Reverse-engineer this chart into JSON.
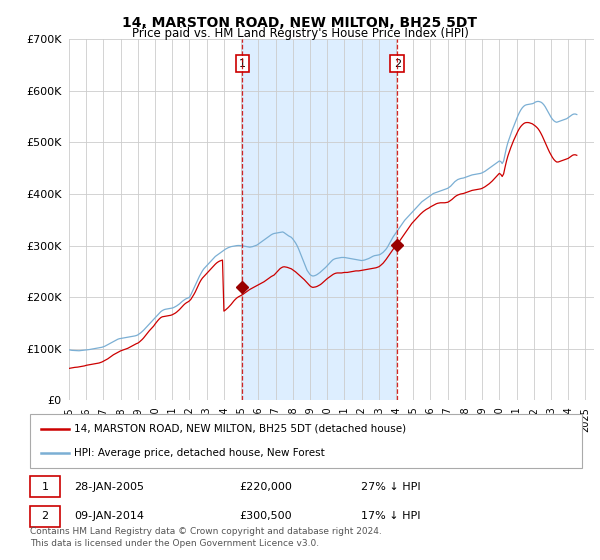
{
  "title": "14, MARSTON ROAD, NEW MILTON, BH25 5DT",
  "subtitle": "Price paid vs. HM Land Registry's House Price Index (HPI)",
  "ylim": [
    0,
    700000
  ],
  "xlim_start": 1995.0,
  "xlim_end": 2025.5,
  "sale1_date": 2005.07,
  "sale1_price": 220000,
  "sale2_date": 2014.07,
  "sale2_price": 300500,
  "legend_line1": "14, MARSTON ROAD, NEW MILTON, BH25 5DT (detached house)",
  "legend_line2": "HPI: Average price, detached house, New Forest",
  "footer": "Contains HM Land Registry data © Crown copyright and database right 2024.\nThis data is licensed under the Open Government Licence v3.0.",
  "line_color_red": "#cc0000",
  "line_color_blue": "#7bafd4",
  "sale_marker_color": "#990000",
  "vline_color": "#cc0000",
  "shade_color": "#ddeeff",
  "background_plot": "#ffffff",
  "grid_color": "#cccccc",
  "hpi_data_x": [
    1995.0,
    1995.083,
    1995.167,
    1995.25,
    1995.333,
    1995.417,
    1995.5,
    1995.583,
    1995.667,
    1995.75,
    1995.833,
    1995.917,
    1996.0,
    1996.083,
    1996.167,
    1996.25,
    1996.333,
    1996.417,
    1996.5,
    1996.583,
    1996.667,
    1996.75,
    1996.833,
    1996.917,
    1997.0,
    1997.083,
    1997.167,
    1997.25,
    1997.333,
    1997.417,
    1997.5,
    1997.583,
    1997.667,
    1997.75,
    1997.833,
    1997.917,
    1998.0,
    1998.083,
    1998.167,
    1998.25,
    1998.333,
    1998.417,
    1998.5,
    1998.583,
    1998.667,
    1998.75,
    1998.833,
    1998.917,
    1999.0,
    1999.083,
    1999.167,
    1999.25,
    1999.333,
    1999.417,
    1999.5,
    1999.583,
    1999.667,
    1999.75,
    1999.833,
    1999.917,
    2000.0,
    2000.083,
    2000.167,
    2000.25,
    2000.333,
    2000.417,
    2000.5,
    2000.583,
    2000.667,
    2000.75,
    2000.833,
    2000.917,
    2001.0,
    2001.083,
    2001.167,
    2001.25,
    2001.333,
    2001.417,
    2001.5,
    2001.583,
    2001.667,
    2001.75,
    2001.833,
    2001.917,
    2002.0,
    2002.083,
    2002.167,
    2002.25,
    2002.333,
    2002.417,
    2002.5,
    2002.583,
    2002.667,
    2002.75,
    2002.833,
    2002.917,
    2003.0,
    2003.083,
    2003.167,
    2003.25,
    2003.333,
    2003.417,
    2003.5,
    2003.583,
    2003.667,
    2003.75,
    2003.833,
    2003.917,
    2004.0,
    2004.083,
    2004.167,
    2004.25,
    2004.333,
    2004.417,
    2004.5,
    2004.583,
    2004.667,
    2004.75,
    2004.833,
    2004.917,
    2005.0,
    2005.083,
    2005.167,
    2005.25,
    2005.333,
    2005.417,
    2005.5,
    2005.583,
    2005.667,
    2005.75,
    2005.833,
    2005.917,
    2006.0,
    2006.083,
    2006.167,
    2006.25,
    2006.333,
    2006.417,
    2006.5,
    2006.583,
    2006.667,
    2006.75,
    2006.833,
    2006.917,
    2007.0,
    2007.083,
    2007.167,
    2007.25,
    2007.333,
    2007.417,
    2007.5,
    2007.583,
    2007.667,
    2007.75,
    2007.833,
    2007.917,
    2008.0,
    2008.083,
    2008.167,
    2008.25,
    2008.333,
    2008.417,
    2008.5,
    2008.583,
    2008.667,
    2008.75,
    2008.833,
    2008.917,
    2009.0,
    2009.083,
    2009.167,
    2009.25,
    2009.333,
    2009.417,
    2009.5,
    2009.583,
    2009.667,
    2009.75,
    2009.833,
    2009.917,
    2010.0,
    2010.083,
    2010.167,
    2010.25,
    2010.333,
    2010.417,
    2010.5,
    2010.583,
    2010.667,
    2010.75,
    2010.833,
    2010.917,
    2011.0,
    2011.083,
    2011.167,
    2011.25,
    2011.333,
    2011.417,
    2011.5,
    2011.583,
    2011.667,
    2011.75,
    2011.833,
    2011.917,
    2012.0,
    2012.083,
    2012.167,
    2012.25,
    2012.333,
    2012.417,
    2012.5,
    2012.583,
    2012.667,
    2012.75,
    2012.833,
    2012.917,
    2013.0,
    2013.083,
    2013.167,
    2013.25,
    2013.333,
    2013.417,
    2013.5,
    2013.583,
    2013.667,
    2013.75,
    2013.833,
    2013.917,
    2014.0,
    2014.083,
    2014.167,
    2014.25,
    2014.333,
    2014.417,
    2014.5,
    2014.583,
    2014.667,
    2014.75,
    2014.833,
    2014.917,
    2015.0,
    2015.083,
    2015.167,
    2015.25,
    2015.333,
    2015.417,
    2015.5,
    2015.583,
    2015.667,
    2015.75,
    2015.833,
    2015.917,
    2016.0,
    2016.083,
    2016.167,
    2016.25,
    2016.333,
    2016.417,
    2016.5,
    2016.583,
    2016.667,
    2016.75,
    2016.833,
    2016.917,
    2017.0,
    2017.083,
    2017.167,
    2017.25,
    2017.333,
    2017.417,
    2017.5,
    2017.583,
    2017.667,
    2017.75,
    2017.833,
    2017.917,
    2018.0,
    2018.083,
    2018.167,
    2018.25,
    2018.333,
    2018.417,
    2018.5,
    2018.583,
    2018.667,
    2018.75,
    2018.833,
    2018.917,
    2019.0,
    2019.083,
    2019.167,
    2019.25,
    2019.333,
    2019.417,
    2019.5,
    2019.583,
    2019.667,
    2019.75,
    2019.833,
    2019.917,
    2020.0,
    2020.083,
    2020.167,
    2020.25,
    2020.333,
    2020.417,
    2020.5,
    2020.583,
    2020.667,
    2020.75,
    2020.833,
    2020.917,
    2021.0,
    2021.083,
    2021.167,
    2021.25,
    2021.333,
    2021.417,
    2021.5,
    2021.583,
    2021.667,
    2021.75,
    2021.833,
    2021.917,
    2022.0,
    2022.083,
    2022.167,
    2022.25,
    2022.333,
    2022.417,
    2022.5,
    2022.583,
    2022.667,
    2022.75,
    2022.833,
    2022.917,
    2023.0,
    2023.083,
    2023.167,
    2023.25,
    2023.333,
    2023.417,
    2023.5,
    2023.583,
    2023.667,
    2023.75,
    2023.833,
    2023.917,
    2024.0,
    2024.083,
    2024.167,
    2024.25,
    2024.333,
    2024.417,
    2024.5
  ],
  "hpi_data_y": [
    98000,
    97500,
    97000,
    96800,
    96500,
    96200,
    96000,
    96200,
    96500,
    96800,
    97000,
    97200,
    97500,
    98000,
    98500,
    99000,
    99500,
    100000,
    100500,
    101000,
    101500,
    102000,
    102500,
    103000,
    104000,
    105000,
    106500,
    108000,
    109500,
    111000,
    112500,
    114000,
    115500,
    117000,
    118500,
    119500,
    120000,
    120500,
    121000,
    121500,
    122000,
    122500,
    123000,
    123500,
    124000,
    124500,
    125000,
    125800,
    127000,
    129000,
    131000,
    133500,
    136000,
    139000,
    142000,
    145000,
    148000,
    151000,
    154000,
    157000,
    160000,
    163000,
    166000,
    169000,
    172000,
    174000,
    175500,
    176500,
    177000,
    177500,
    178000,
    178500,
    179000,
    180000,
    181500,
    183000,
    185000,
    187000,
    189500,
    192000,
    194000,
    196000,
    197500,
    198500,
    200000,
    205000,
    211000,
    217000,
    223000,
    229000,
    235000,
    241000,
    246000,
    251000,
    255000,
    258000,
    261000,
    264000,
    267000,
    270000,
    273000,
    276000,
    279000,
    281000,
    283000,
    285000,
    287000,
    289000,
    291000,
    293000,
    294500,
    296000,
    297000,
    298000,
    298500,
    299000,
    299500,
    300000,
    300200,
    300100,
    300000,
    299500,
    299000,
    298500,
    298000,
    297500,
    297000,
    297500,
    298000,
    299000,
    300000,
    301000,
    303000,
    305000,
    307000,
    309000,
    311000,
    313000,
    315000,
    317000,
    319000,
    321000,
    322500,
    323500,
    324000,
    324500,
    325000,
    325500,
    326000,
    326500,
    325000,
    323000,
    321000,
    319000,
    317500,
    316000,
    313000,
    309000,
    305000,
    300000,
    294000,
    287000,
    280000,
    273000,
    266000,
    259000,
    252000,
    248000,
    244000,
    242000,
    241000,
    241500,
    242500,
    244000,
    246000,
    248000,
    250500,
    253000,
    255500,
    258000,
    261000,
    264000,
    267000,
    270000,
    272500,
    274000,
    275000,
    275500,
    276000,
    276500,
    277000,
    277000,
    277000,
    276500,
    276000,
    275500,
    275000,
    274500,
    274000,
    273500,
    273000,
    272500,
    272000,
    271500,
    271000,
    271500,
    272000,
    273000,
    274000,
    275000,
    276500,
    278000,
    279500,
    280500,
    281000,
    281500,
    282000,
    283000,
    285000,
    287000,
    290000,
    293000,
    297000,
    302000,
    307000,
    312000,
    317000,
    321000,
    325000,
    329000,
    333000,
    337000,
    341000,
    345000,
    349000,
    352000,
    355000,
    358000,
    361000,
    364000,
    367000,
    370000,
    373000,
    376000,
    379000,
    382000,
    385000,
    387000,
    389000,
    391000,
    393000,
    395000,
    397000,
    399000,
    401000,
    402000,
    403000,
    404000,
    405000,
    406000,
    407000,
    408000,
    409000,
    410000,
    411000,
    413000,
    415000,
    418000,
    421000,
    424000,
    426000,
    428000,
    429000,
    430000,
    430500,
    431000,
    432000,
    433000,
    434000,
    435000,
    436000,
    437000,
    437500,
    438000,
    438500,
    439000,
    439500,
    440000,
    441000,
    442500,
    444000,
    446000,
    448000,
    450000,
    452000,
    454000,
    456000,
    458000,
    460000,
    462000,
    464000,
    463000,
    459000,
    464000,
    477000,
    490000,
    500000,
    508000,
    516000,
    524000,
    531000,
    538000,
    545000,
    552000,
    558000,
    563000,
    567000,
    570000,
    572000,
    573000,
    573500,
    574000,
    574500,
    575000,
    576000,
    578000,
    579000,
    579500,
    579000,
    578000,
    576000,
    573000,
    569000,
    564000,
    559000,
    554000,
    549000,
    545000,
    542000,
    540000,
    539000,
    540000,
    541000,
    542000,
    543000,
    544000,
    545000,
    546000,
    548000,
    550000,
    552000,
    554000,
    555000,
    555000,
    554000
  ],
  "prop_data_x": [
    1995.0,
    1995.083,
    1995.167,
    1995.25,
    1995.333,
    1995.417,
    1995.5,
    1995.583,
    1995.667,
    1995.75,
    1995.833,
    1995.917,
    1996.0,
    1996.083,
    1996.167,
    1996.25,
    1996.333,
    1996.417,
    1996.5,
    1996.583,
    1996.667,
    1996.75,
    1996.833,
    1996.917,
    1997.0,
    1997.083,
    1997.167,
    1997.25,
    1997.333,
    1997.417,
    1997.5,
    1997.583,
    1997.667,
    1997.75,
    1997.833,
    1997.917,
    1998.0,
    1998.083,
    1998.167,
    1998.25,
    1998.333,
    1998.417,
    1998.5,
    1998.583,
    1998.667,
    1998.75,
    1998.833,
    1998.917,
    1999.0,
    1999.083,
    1999.167,
    1999.25,
    1999.333,
    1999.417,
    1999.5,
    1999.583,
    1999.667,
    1999.75,
    1999.833,
    1999.917,
    2000.0,
    2000.083,
    2000.167,
    2000.25,
    2000.333,
    2000.417,
    2000.5,
    2000.583,
    2000.667,
    2000.75,
    2000.833,
    2000.917,
    2001.0,
    2001.083,
    2001.167,
    2001.25,
    2001.333,
    2001.417,
    2001.5,
    2001.583,
    2001.667,
    2001.75,
    2001.833,
    2001.917,
    2002.0,
    2002.083,
    2002.167,
    2002.25,
    2002.333,
    2002.417,
    2002.5,
    2002.583,
    2002.667,
    2002.75,
    2002.833,
    2002.917,
    2003.0,
    2003.083,
    2003.167,
    2003.25,
    2003.333,
    2003.417,
    2003.5,
    2003.583,
    2003.667,
    2003.75,
    2003.833,
    2003.917,
    2004.0,
    2004.083,
    2004.167,
    2004.25,
    2004.333,
    2004.417,
    2004.5,
    2004.583,
    2004.667,
    2004.75,
    2004.833,
    2004.917,
    2005.0,
    2005.083,
    2005.167,
    2005.25,
    2005.333,
    2005.417,
    2005.5,
    2005.583,
    2005.667,
    2005.75,
    2005.833,
    2005.917,
    2006.0,
    2006.083,
    2006.167,
    2006.25,
    2006.333,
    2006.417,
    2006.5,
    2006.583,
    2006.667,
    2006.75,
    2006.833,
    2006.917,
    2007.0,
    2007.083,
    2007.167,
    2007.25,
    2007.333,
    2007.417,
    2007.5,
    2007.583,
    2007.667,
    2007.75,
    2007.833,
    2007.917,
    2008.0,
    2008.083,
    2008.167,
    2008.25,
    2008.333,
    2008.417,
    2008.5,
    2008.583,
    2008.667,
    2008.75,
    2008.833,
    2008.917,
    2009.0,
    2009.083,
    2009.167,
    2009.25,
    2009.333,
    2009.417,
    2009.5,
    2009.583,
    2009.667,
    2009.75,
    2009.833,
    2009.917,
    2010.0,
    2010.083,
    2010.167,
    2010.25,
    2010.333,
    2010.417,
    2010.5,
    2010.583,
    2010.667,
    2010.75,
    2010.833,
    2010.917,
    2011.0,
    2011.083,
    2011.167,
    2011.25,
    2011.333,
    2011.417,
    2011.5,
    2011.583,
    2011.667,
    2011.75,
    2011.833,
    2011.917,
    2012.0,
    2012.083,
    2012.167,
    2012.25,
    2012.333,
    2012.417,
    2012.5,
    2012.583,
    2012.667,
    2012.75,
    2012.833,
    2012.917,
    2013.0,
    2013.083,
    2013.167,
    2013.25,
    2013.333,
    2013.417,
    2013.5,
    2013.583,
    2013.667,
    2013.75,
    2013.833,
    2013.917,
    2014.0,
    2014.083,
    2014.167,
    2014.25,
    2014.333,
    2014.417,
    2014.5,
    2014.583,
    2014.667,
    2014.75,
    2014.833,
    2014.917,
    2015.0,
    2015.083,
    2015.167,
    2015.25,
    2015.333,
    2015.417,
    2015.5,
    2015.583,
    2015.667,
    2015.75,
    2015.833,
    2015.917,
    2016.0,
    2016.083,
    2016.167,
    2016.25,
    2016.333,
    2016.417,
    2016.5,
    2016.583,
    2016.667,
    2016.75,
    2016.833,
    2016.917,
    2017.0,
    2017.083,
    2017.167,
    2017.25,
    2017.333,
    2017.417,
    2017.5,
    2017.583,
    2017.667,
    2017.75,
    2017.833,
    2017.917,
    2018.0,
    2018.083,
    2018.167,
    2018.25,
    2018.333,
    2018.417,
    2018.5,
    2018.583,
    2018.667,
    2018.75,
    2018.833,
    2018.917,
    2019.0,
    2019.083,
    2019.167,
    2019.25,
    2019.333,
    2019.417,
    2019.5,
    2019.583,
    2019.667,
    2019.75,
    2019.833,
    2019.917,
    2020.0,
    2020.083,
    2020.167,
    2020.25,
    2020.333,
    2020.417,
    2020.5,
    2020.583,
    2020.667,
    2020.75,
    2020.833,
    2020.917,
    2021.0,
    2021.083,
    2021.167,
    2021.25,
    2021.333,
    2021.417,
    2021.5,
    2021.583,
    2021.667,
    2021.75,
    2021.833,
    2021.917,
    2022.0,
    2022.083,
    2022.167,
    2022.25,
    2022.333,
    2022.417,
    2022.5,
    2022.583,
    2022.667,
    2022.75,
    2022.833,
    2022.917,
    2023.0,
    2023.083,
    2023.167,
    2023.25,
    2023.333,
    2023.417,
    2023.5,
    2023.583,
    2023.667,
    2023.75,
    2023.833,
    2023.917,
    2024.0,
    2024.083,
    2024.167,
    2024.25,
    2024.333,
    2024.417,
    2024.5
  ],
  "prop_data_y": [
    62000,
    62500,
    63000,
    63500,
    64000,
    64200,
    64500,
    65000,
    65500,
    66000,
    66500,
    67000,
    68000,
    68500,
    69000,
    69500,
    70000,
    70500,
    71000,
    71500,
    72000,
    72500,
    73500,
    74500,
    76000,
    77500,
    79000,
    80500,
    82500,
    84500,
    86500,
    88500,
    90000,
    91500,
    93000,
    94500,
    96000,
    97000,
    98000,
    99000,
    100000,
    101000,
    102500,
    104000,
    105500,
    107000,
    108500,
    110000,
    111000,
    113000,
    115500,
    118000,
    121000,
    124500,
    128000,
    131500,
    135000,
    138000,
    141000,
    144000,
    148000,
    151500,
    155000,
    158000,
    160500,
    162000,
    162500,
    163000,
    163500,
    164000,
    164500,
    165000,
    166000,
    167500,
    169000,
    171000,
    173500,
    176000,
    179000,
    182000,
    185000,
    187500,
    189500,
    191000,
    193000,
    196000,
    200500,
    205000,
    210000,
    216000,
    222000,
    228000,
    233000,
    237000,
    240000,
    243000,
    246000,
    249000,
    252000,
    255000,
    258000,
    261000,
    264000,
    266500,
    268500,
    270000,
    271000,
    272000,
    173000,
    175000,
    177500,
    180000,
    183000,
    186000,
    189500,
    193000,
    196000,
    198500,
    200500,
    202000,
    203500,
    205000,
    207000,
    209000,
    211000,
    213000,
    215000,
    216500,
    218000,
    219500,
    221000,
    222500,
    224000,
    225500,
    227000,
    228500,
    230000,
    232000,
    234000,
    236000,
    238000,
    240000,
    241500,
    243000,
    246000,
    249000,
    252000,
    255000,
    257000,
    258500,
    259000,
    258500,
    258000,
    257000,
    256000,
    255000,
    253000,
    251000,
    249000,
    246500,
    244000,
    241500,
    239000,
    236500,
    234000,
    231000,
    228000,
    225000,
    222000,
    220000,
    219000,
    219500,
    220000,
    221000,
    222500,
    224000,
    226000,
    228500,
    231000,
    233500,
    236000,
    238000,
    240000,
    242000,
    244000,
    245500,
    246500,
    247000,
    247000,
    247000,
    247000,
    247500,
    248000,
    248000,
    248000,
    248500,
    249000,
    249500,
    250000,
    250500,
    251000,
    251000,
    251000,
    251500,
    252000,
    252500,
    253000,
    253500,
    254000,
    254500,
    255000,
    255500,
    256000,
    256500,
    257000,
    258000,
    259000,
    261000,
    263500,
    266000,
    269500,
    273000,
    277000,
    281000,
    285000,
    289000,
    293000,
    297000,
    300500,
    303500,
    307000,
    311000,
    315000,
    319000,
    323000,
    327000,
    331000,
    335000,
    339000,
    343000,
    346000,
    349000,
    352000,
    355000,
    358000,
    361000,
    363500,
    366000,
    368000,
    370000,
    371500,
    373000,
    375000,
    376500,
    378000,
    379500,
    381000,
    382000,
    382500,
    383000,
    383000,
    383000,
    383000,
    383500,
    384000,
    385500,
    387500,
    389500,
    392000,
    394500,
    396500,
    398000,
    399000,
    400000,
    400500,
    401000,
    402000,
    403000,
    404000,
    405000,
    406000,
    407000,
    407500,
    408000,
    408500,
    409000,
    409500,
    410000,
    411000,
    412500,
    414000,
    416000,
    418000,
    420000,
    422500,
    425000,
    428000,
    431000,
    434000,
    437000,
    440000,
    438000,
    434000,
    439000,
    452000,
    464000,
    474000,
    482000,
    490000,
    497000,
    504000,
    510000,
    516000,
    522000,
    527000,
    531000,
    534000,
    536500,
    538000,
    538500,
    538500,
    538000,
    537000,
    536000,
    534000,
    532000,
    529500,
    526500,
    522500,
    517500,
    512000,
    506000,
    499500,
    493000,
    487000,
    481000,
    476000,
    471000,
    467000,
    464000,
    462000,
    462000,
    463000,
    464000,
    465000,
    466000,
    467000,
    468000,
    469000,
    471000,
    473000,
    475000,
    476000,
    476000,
    475000
  ],
  "xticks": [
    1995,
    1996,
    1997,
    1998,
    1999,
    2000,
    2001,
    2002,
    2003,
    2004,
    2005,
    2006,
    2007,
    2008,
    2009,
    2010,
    2011,
    2012,
    2013,
    2014,
    2015,
    2016,
    2017,
    2018,
    2019,
    2020,
    2021,
    2022,
    2023,
    2024,
    2025
  ]
}
